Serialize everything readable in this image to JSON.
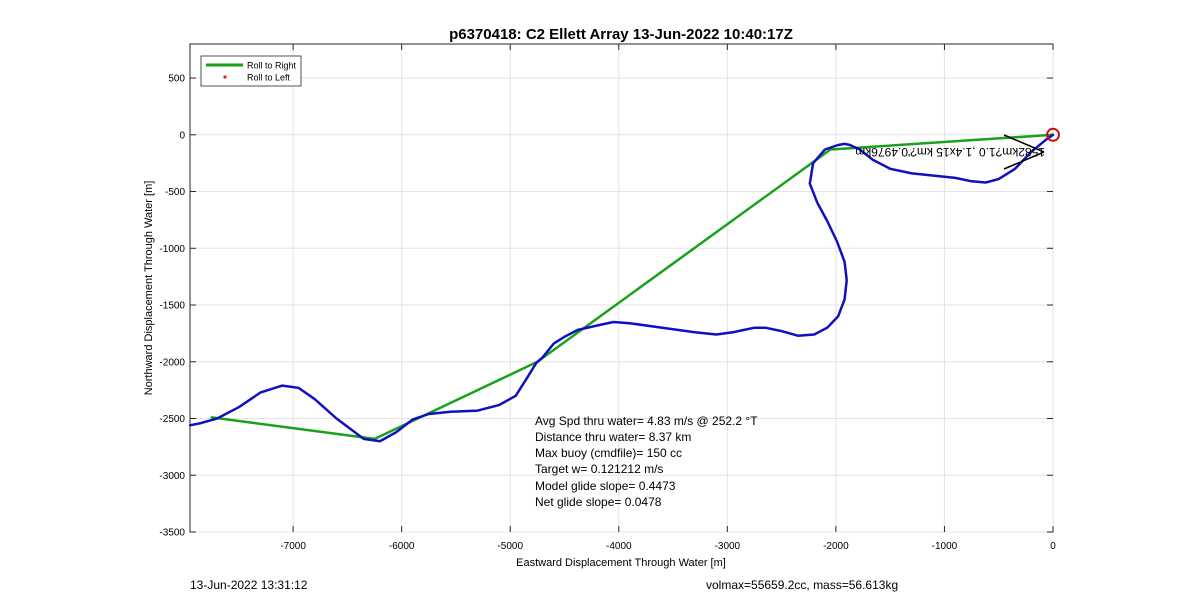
{
  "chart_data": {
    "type": "line",
    "title": "p6370418: C2 Ellett Array 13-Jun-2022 10:40:17Z",
    "xlabel": "Eastward Displacement Through Water [m]",
    "ylabel": "Northward Displacement Through Water [m]",
    "xlim": [
      -7950,
      0
    ],
    "ylim": [
      -3500,
      800
    ],
    "xticks": [
      -7000,
      -6000,
      -5000,
      -4000,
      -3000,
      -2000,
      -1000,
      0
    ],
    "xtick_labels": [
      "-7000",
      "-6000",
      "-5000",
      "-4000",
      "-3000",
      "-2000",
      "-1000",
      "0"
    ],
    "yticks": [
      500,
      0,
      -500,
      -1000,
      -1500,
      -2000,
      -2500,
      -3000,
      -3500
    ],
    "ytick_labels": [
      "500",
      "0",
      "-500",
      "-1000",
      "-1500",
      "-2000",
      "-2500",
      "-3000",
      "-3500"
    ],
    "grid": true,
    "legend_position": "top-left",
    "legend": [
      {
        "label": "Roll to Right",
        "color": "#1aa01a",
        "style": "line"
      },
      {
        "label": "Roll to Left",
        "color": "#dd2222",
        "style": "dot"
      }
    ],
    "series": [
      {
        "name": "Roll to Right",
        "color": "#1aa01a",
        "x": [
          0,
          -2050,
          -4750,
          -6250,
          -7750
        ],
        "y": [
          0,
          -130,
          -2000,
          -2680,
          -2490
        ]
      },
      {
        "color": "#1010c0",
        "x": [
          -7950,
          -7850,
          -7700,
          -7500,
          -7300,
          -7100,
          -6950,
          -6800,
          -6600,
          -6350,
          -6200,
          -6050,
          -5900,
          -5750,
          -5550,
          -5300,
          -5100,
          -4950,
          -4850,
          -4760,
          -4700,
          -4600,
          -4500,
          -4380,
          -4200,
          -4050,
          -3900,
          -3600,
          -3300,
          -3100,
          -2950,
          -2850,
          -2750,
          -2650,
          -2500,
          -2350,
          -2200,
          -2080,
          -1980,
          -1920,
          -1900,
          -1920,
          -1990,
          -2080,
          -2170,
          -2240,
          -2210,
          -2100,
          -1980,
          -1920,
          -1870,
          -1780,
          -1660,
          -1500,
          -1300,
          -1100,
          -900,
          -750,
          -620,
          -500,
          -350,
          -200,
          -60,
          0
        ],
        "y": [
          -2560,
          -2540,
          -2500,
          -2400,
          -2270,
          -2210,
          -2230,
          -2330,
          -2500,
          -2680,
          -2700,
          -2620,
          -2510,
          -2460,
          -2440,
          -2430,
          -2380,
          -2300,
          -2150,
          -2010,
          -1960,
          -1840,
          -1780,
          -1720,
          -1680,
          -1650,
          -1660,
          -1700,
          -1740,
          -1760,
          -1740,
          -1720,
          -1700,
          -1700,
          -1730,
          -1770,
          -1760,
          -1700,
          -1600,
          -1450,
          -1280,
          -1120,
          -940,
          -760,
          -600,
          -430,
          -250,
          -130,
          -90,
          -80,
          -90,
          -130,
          -220,
          -300,
          -340,
          -360,
          -380,
          -410,
          -420,
          -390,
          -300,
          -150,
          -40,
          0
        ]
      }
    ],
    "markers": [
      {
        "x": 0,
        "y": 0,
        "color": "#cc1111",
        "shape": "circle"
      }
    ],
    "annotation_mirrored": "1582km?1.0 ,1.4x15 km?'0.4976km",
    "stats_lines": [
      "Avg Spd thru water=  4.83 m/s @ 252.2 °T",
      "Distance thru water=  8.37 km",
      "Max buoy (cmdfile)= 150 cc",
      "Target w= 0.121212 m/s",
      "Model glide slope= 0.4473",
      "Net glide slope= 0.0478"
    ]
  },
  "footer": {
    "left": "13-Jun-2022 13:31:12",
    "right": "volmax=55659.2cc, mass=56.613kg"
  }
}
